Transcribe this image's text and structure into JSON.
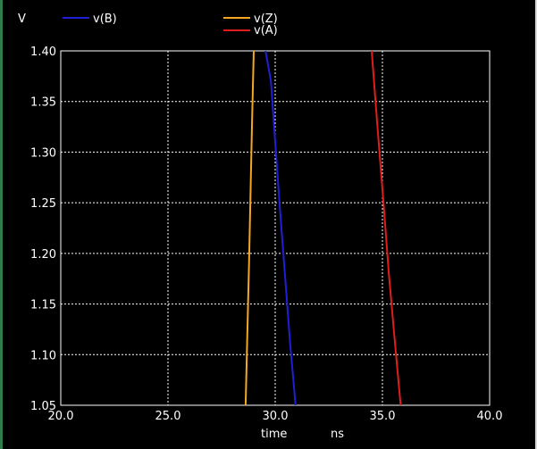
{
  "chart_data": {
    "type": "line",
    "ylabel": "V",
    "xlabel": "time",
    "xunit": "ns",
    "xlim": [
      20.0,
      40.0
    ],
    "ylim": [
      1.05,
      1.4
    ],
    "x_ticks": [
      "20.0",
      "25.0",
      "30.0",
      "35.0",
      "40.0"
    ],
    "y_ticks": [
      "1.05",
      "1.10",
      "1.15",
      "1.20",
      "1.25",
      "1.30",
      "1.35",
      "1.40"
    ],
    "grid": true,
    "series": [
      {
        "name": "v(B)",
        "color": "#1f1fd6",
        "points": [
          [
            29.55,
            1.4
          ],
          [
            29.8,
            1.37
          ],
          [
            30.0,
            1.31
          ],
          [
            30.2,
            1.25
          ],
          [
            30.45,
            1.18
          ],
          [
            30.7,
            1.11
          ],
          [
            30.95,
            1.05
          ]
        ]
      },
      {
        "name": "v(Z)",
        "color": "#f5a623",
        "points": [
          [
            29.0,
            1.4
          ],
          [
            28.92,
            1.33
          ],
          [
            28.85,
            1.26
          ],
          [
            28.78,
            1.19
          ],
          [
            28.7,
            1.12
          ],
          [
            28.62,
            1.05
          ]
        ]
      },
      {
        "name": "v(A)",
        "color": "#e01c1c",
        "points": [
          [
            34.5,
            1.4
          ],
          [
            34.75,
            1.33
          ],
          [
            35.05,
            1.25
          ],
          [
            35.3,
            1.18
          ],
          [
            35.55,
            1.12
          ],
          [
            35.85,
            1.05
          ]
        ]
      }
    ]
  },
  "colors": {
    "background": "#000000",
    "axis_text": "#ffffff",
    "grid": "#ffffff"
  }
}
